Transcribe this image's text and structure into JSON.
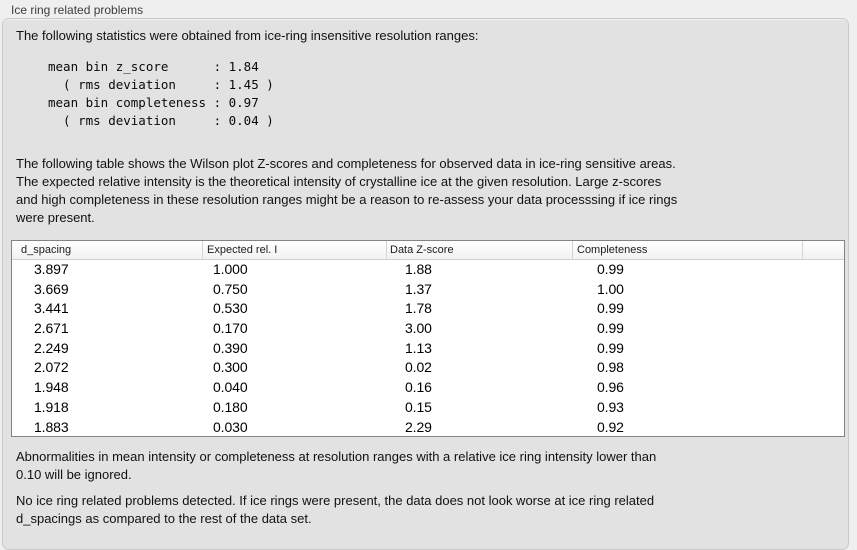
{
  "panel": {
    "title": "Ice ring related problems"
  },
  "intro": "The following statistics were obtained from ice-ring insensitive resolution ranges:",
  "stats_block": "mean bin z_score      : 1.84\n  ( rms deviation     : 1.45 )\nmean bin completeness : 0.97\n  ( rms deviation     : 0.04 )",
  "stats": {
    "mean_bin_z_score": "1.84",
    "z_score_rms_deviation": "1.45",
    "mean_bin_completeness": "0.97",
    "completeness_rms_deviation": "0.04"
  },
  "description": "The following table shows the Wilson plot Z-scores and completeness for observed data in ice-ring sensitive areas.\nThe expected relative intensity is the theoretical intensity of crystalline ice at the given resolution. Large z-scores\nand high completeness in these resolution ranges might be a reason to re-assess your data processsing if ice rings\nwere present.",
  "table": {
    "columns": [
      "d_spacing",
      "Expected rel. I",
      "Data Z-score",
      "Completeness"
    ],
    "rows": [
      [
        "3.897",
        "1.000",
        "1.88",
        "0.99"
      ],
      [
        "3.669",
        "0.750",
        "1.37",
        "1.00"
      ],
      [
        "3.441",
        "0.530",
        "1.78",
        "0.99"
      ],
      [
        "2.671",
        "0.170",
        "3.00",
        "0.99"
      ],
      [
        "2.249",
        "0.390",
        "1.13",
        "0.99"
      ],
      [
        "2.072",
        "0.300",
        "0.02",
        "0.98"
      ],
      [
        "1.948",
        "0.040",
        "0.16",
        "0.96"
      ],
      [
        "1.918",
        "0.180",
        "0.15",
        "0.93"
      ],
      [
        "1.883",
        "0.030",
        "2.29",
        "0.92"
      ]
    ]
  },
  "note": "Abnormalities in mean intensity or completeness at resolution ranges with a relative ice ring intensity lower than\n0.10 will be ignored.",
  "conclusion": "No ice ring related problems detected. If ice rings were present, the data does not look worse at ice ring related\nd_spacings as compared to the rest of the data set.",
  "colors": {
    "outer_background": "#efefef",
    "panel_background": "#e2e2e2",
    "panel_border": "#c8c8c8",
    "table_border": "#848484",
    "table_background": "#ffffff",
    "text": "#111111"
  }
}
